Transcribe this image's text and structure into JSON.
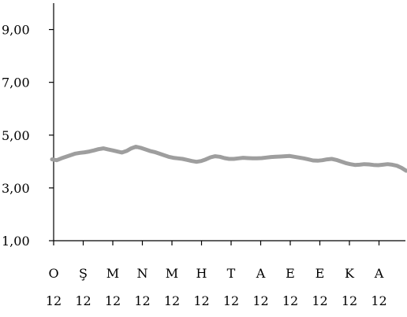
{
  "chart_data": {
    "type": "line",
    "title": "",
    "xlabel": "",
    "ylabel": "",
    "ylim": [
      1.0,
      10.0
    ],
    "yticks": [
      "1,00",
      "3,00",
      "5,00",
      "7,00",
      "9,00"
    ],
    "ytick_values": [
      1,
      3,
      5,
      7,
      9
    ],
    "xtick_month_labels": [
      "O",
      "Ş",
      "M",
      "N",
      "M",
      "H",
      "T",
      "A",
      "E",
      "E",
      "K",
      "A"
    ],
    "xtick_year_labels": [
      "12",
      "12",
      "12",
      "12",
      "12",
      "12",
      "12",
      "12",
      "12",
      "12",
      "12",
      "12"
    ],
    "line_color": "#9e9e9e",
    "grid": false,
    "series": [
      {
        "values": [
          4.08,
          4.05,
          4.12,
          4.18,
          4.24,
          4.3,
          4.33,
          4.35,
          4.38,
          4.42,
          4.47,
          4.5,
          4.46,
          4.42,
          4.38,
          4.34,
          4.4,
          4.5,
          4.56,
          4.52,
          4.46,
          4.4,
          4.36,
          4.3,
          4.24,
          4.18,
          4.14,
          4.12,
          4.1,
          4.06,
          4.02,
          3.99,
          4.02,
          4.08,
          4.16,
          4.2,
          4.18,
          4.13,
          4.1,
          4.1,
          4.12,
          4.14,
          4.13,
          4.12,
          4.12,
          4.13,
          4.15,
          4.17,
          4.18,
          4.19,
          4.2,
          4.21,
          4.18,
          4.15,
          4.12,
          4.08,
          4.04,
          4.03,
          4.05,
          4.08,
          4.1,
          4.06,
          4.0,
          3.94,
          3.9,
          3.87,
          3.88,
          3.9,
          3.89,
          3.87,
          3.86,
          3.88,
          3.9,
          3.88,
          3.84,
          3.76,
          3.65
        ]
      }
    ]
  }
}
